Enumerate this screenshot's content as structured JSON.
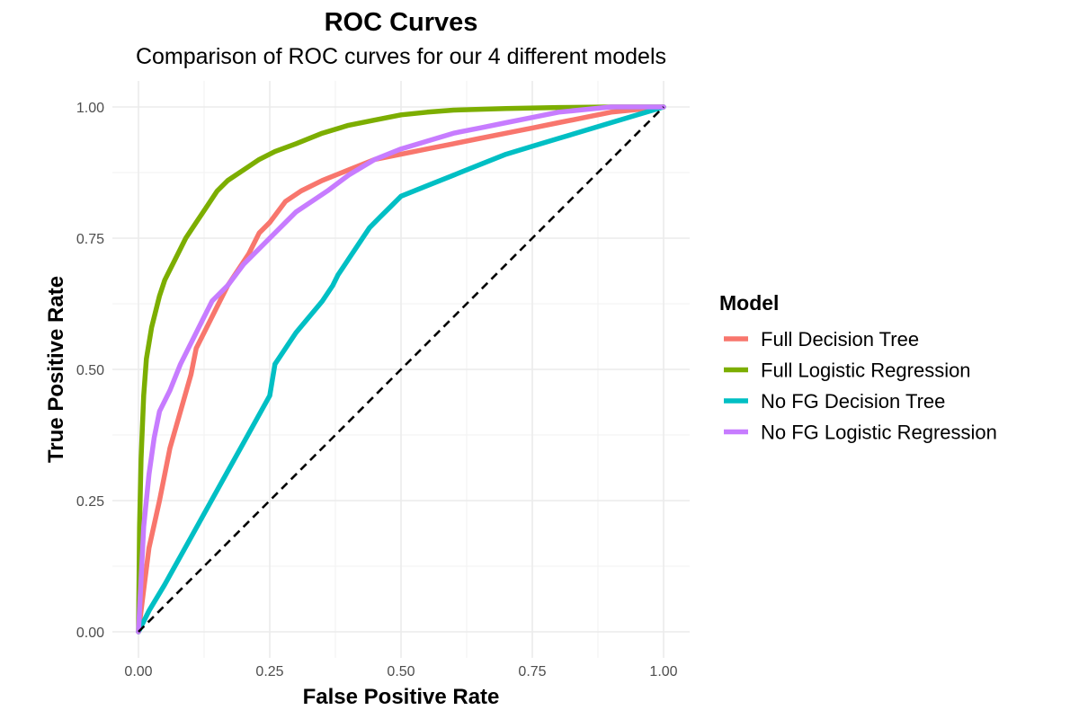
{
  "chart_data": {
    "type": "line",
    "title": "ROC Curves",
    "subtitle": "Comparison of ROC curves for our 4 different models",
    "xlabel": "False Positive Rate",
    "ylabel": "True Positive Rate",
    "xlim": [
      0,
      1
    ],
    "ylim": [
      0,
      1
    ],
    "xticks": [
      "0.00",
      "0.25",
      "0.50",
      "0.75",
      "1.00"
    ],
    "yticks": [
      "0.00",
      "0.25",
      "0.50",
      "0.75",
      "1.00"
    ],
    "grid": true,
    "legend": {
      "title": "Model",
      "position": "right"
    },
    "reference_line": {
      "style": "dashed",
      "color": "#000000",
      "points": [
        [
          0,
          0
        ],
        [
          1,
          1
        ]
      ]
    },
    "series": [
      {
        "name": "Full Decision Tree",
        "color": "#F8766D",
        "points": [
          [
            0,
            0
          ],
          [
            0.01,
            0.08
          ],
          [
            0.02,
            0.16
          ],
          [
            0.04,
            0.25
          ],
          [
            0.06,
            0.35
          ],
          [
            0.08,
            0.42
          ],
          [
            0.1,
            0.49
          ],
          [
            0.11,
            0.54
          ],
          [
            0.13,
            0.58
          ],
          [
            0.15,
            0.62
          ],
          [
            0.17,
            0.66
          ],
          [
            0.19,
            0.69
          ],
          [
            0.21,
            0.72
          ],
          [
            0.23,
            0.76
          ],
          [
            0.25,
            0.78
          ],
          [
            0.28,
            0.82
          ],
          [
            0.31,
            0.84
          ],
          [
            0.35,
            0.86
          ],
          [
            0.4,
            0.88
          ],
          [
            0.45,
            0.9
          ],
          [
            0.5,
            0.91
          ],
          [
            0.55,
            0.92
          ],
          [
            0.6,
            0.93
          ],
          [
            0.65,
            0.94
          ],
          [
            0.7,
            0.95
          ],
          [
            0.75,
            0.96
          ],
          [
            0.8,
            0.97
          ],
          [
            0.85,
            0.98
          ],
          [
            0.9,
            0.99
          ],
          [
            0.95,
            0.995
          ],
          [
            1,
            1
          ]
        ]
      },
      {
        "name": "Full Logistic Regression",
        "color": "#7CAE00",
        "points": [
          [
            0,
            0
          ],
          [
            0.002,
            0.2
          ],
          [
            0.005,
            0.33
          ],
          [
            0.01,
            0.45
          ],
          [
            0.015,
            0.52
          ],
          [
            0.025,
            0.58
          ],
          [
            0.04,
            0.64
          ],
          [
            0.05,
            0.67
          ],
          [
            0.07,
            0.71
          ],
          [
            0.09,
            0.75
          ],
          [
            0.11,
            0.78
          ],
          [
            0.13,
            0.81
          ],
          [
            0.15,
            0.84
          ],
          [
            0.17,
            0.86
          ],
          [
            0.2,
            0.88
          ],
          [
            0.23,
            0.9
          ],
          [
            0.26,
            0.915
          ],
          [
            0.3,
            0.93
          ],
          [
            0.35,
            0.95
          ],
          [
            0.4,
            0.965
          ],
          [
            0.45,
            0.975
          ],
          [
            0.5,
            0.985
          ],
          [
            0.55,
            0.99
          ],
          [
            0.6,
            0.994
          ],
          [
            0.7,
            0.997
          ],
          [
            0.8,
            0.999
          ],
          [
            0.9,
            1
          ],
          [
            1,
            1
          ]
        ]
      },
      {
        "name": "No FG Decision Tree",
        "color": "#00BFC4",
        "points": [
          [
            0,
            0
          ],
          [
            0.02,
            0.04
          ],
          [
            0.05,
            0.09
          ],
          [
            0.1,
            0.18
          ],
          [
            0.15,
            0.27
          ],
          [
            0.2,
            0.36
          ],
          [
            0.25,
            0.45
          ],
          [
            0.255,
            0.48
          ],
          [
            0.26,
            0.51
          ],
          [
            0.28,
            0.54
          ],
          [
            0.3,
            0.57
          ],
          [
            0.35,
            0.63
          ],
          [
            0.37,
            0.66
          ],
          [
            0.38,
            0.68
          ],
          [
            0.4,
            0.71
          ],
          [
            0.42,
            0.74
          ],
          [
            0.44,
            0.77
          ],
          [
            0.46,
            0.79
          ],
          [
            0.48,
            0.81
          ],
          [
            0.5,
            0.83
          ],
          [
            0.55,
            0.85
          ],
          [
            0.6,
            0.87
          ],
          [
            0.65,
            0.89
          ],
          [
            0.7,
            0.91
          ],
          [
            0.75,
            0.925
          ],
          [
            0.8,
            0.94
          ],
          [
            0.85,
            0.955
          ],
          [
            0.9,
            0.97
          ],
          [
            0.95,
            0.985
          ],
          [
            1,
            1
          ]
        ]
      },
      {
        "name": "No FG Logistic Regression",
        "color": "#C77CFF",
        "points": [
          [
            0,
            0
          ],
          [
            0.005,
            0.1
          ],
          [
            0.01,
            0.2
          ],
          [
            0.02,
            0.3
          ],
          [
            0.03,
            0.37
          ],
          [
            0.04,
            0.42
          ],
          [
            0.06,
            0.46
          ],
          [
            0.08,
            0.51
          ],
          [
            0.1,
            0.55
          ],
          [
            0.12,
            0.59
          ],
          [
            0.14,
            0.63
          ],
          [
            0.17,
            0.66
          ],
          [
            0.2,
            0.7
          ],
          [
            0.23,
            0.73
          ],
          [
            0.26,
            0.76
          ],
          [
            0.28,
            0.78
          ],
          [
            0.3,
            0.8
          ],
          [
            0.33,
            0.82
          ],
          [
            0.36,
            0.84
          ],
          [
            0.4,
            0.87
          ],
          [
            0.45,
            0.9
          ],
          [
            0.5,
            0.92
          ],
          [
            0.55,
            0.935
          ],
          [
            0.6,
            0.95
          ],
          [
            0.65,
            0.96
          ],
          [
            0.7,
            0.97
          ],
          [
            0.75,
            0.98
          ],
          [
            0.8,
            0.99
          ],
          [
            0.85,
            0.995
          ],
          [
            0.9,
            1
          ],
          [
            1,
            1
          ]
        ]
      }
    ]
  }
}
